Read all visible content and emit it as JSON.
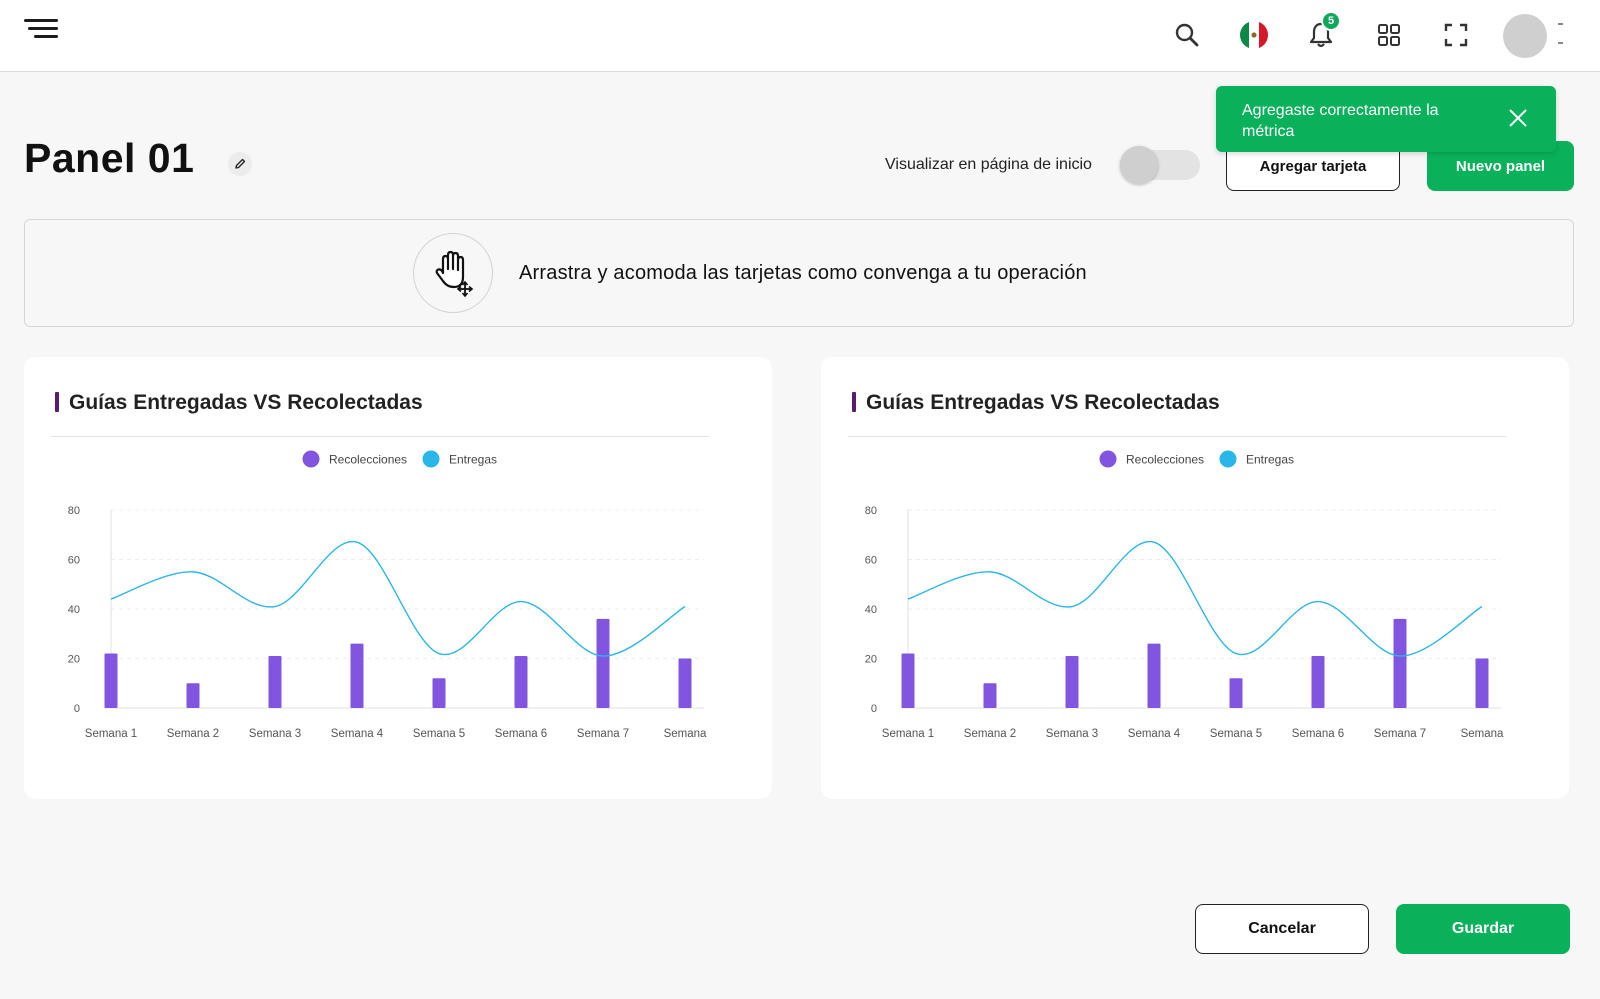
{
  "header": {
    "notification_count": "5",
    "icons": [
      "menu-icon",
      "search-icon",
      "mexico-flag-icon",
      "bell-icon",
      "grid-icon",
      "fullscreen-icon",
      "avatar"
    ]
  },
  "page": {
    "title": "Panel 01"
  },
  "controls": {
    "toggle_label": "Visualizar en página de inicio",
    "toggle_on": false,
    "add_card_label": "Agregar tarjeta",
    "new_panel_label": "Nuevo panel"
  },
  "toast": {
    "message": "Agregaste correctamente la métrica"
  },
  "hint": {
    "text": "Arrastra y acomoda las tarjetas como  convenga a tu operación"
  },
  "colors": {
    "accent_green": "#0ab15b",
    "bar_purple": "#8255e0",
    "line_blue": "#29b6e8",
    "title_marker": "#5a1a6e"
  },
  "cards": [
    {
      "title": "Guías Entregadas VS Recolectadas"
    },
    {
      "title": "Guías Entregadas VS Recolectadas"
    }
  ],
  "chart_data": [
    {
      "type": "bar",
      "title": "Guías Entregadas VS Recolectadas",
      "categories": [
        "Semana 1",
        "Semana 2",
        "Semana 3",
        "Semana 4",
        "Semana 5",
        "Semana 6",
        "Semana 7",
        "Semana"
      ],
      "series": [
        {
          "name": "Recolecciones",
          "type": "bar",
          "values": [
            22,
            10,
            21,
            26,
            12,
            21,
            36,
            20
          ]
        },
        {
          "name": "Entregas",
          "type": "line",
          "values": [
            44,
            55,
            41,
            67,
            22,
            43,
            21,
            41
          ]
        }
      ],
      "yticks": [
        "0",
        "20",
        "40",
        "60",
        "80"
      ],
      "ylim": [
        0,
        80
      ],
      "legend": "top-center",
      "grid": true
    },
    {
      "type": "bar",
      "title": "Guías Entregadas VS Recolectadas",
      "categories": [
        "Semana 1",
        "Semana 2",
        "Semana 3",
        "Semana 4",
        "Semana 5",
        "Semana 6",
        "Semana 7",
        "Semana"
      ],
      "series": [
        {
          "name": "Recolecciones",
          "type": "bar",
          "values": [
            22,
            10,
            21,
            26,
            12,
            21,
            36,
            20
          ]
        },
        {
          "name": "Entregas",
          "type": "line",
          "values": [
            44,
            55,
            41,
            67,
            22,
            43,
            21,
            41
          ]
        }
      ],
      "yticks": [
        "0",
        "20",
        "40",
        "60",
        "80"
      ],
      "ylim": [
        0,
        80
      ],
      "legend": "top-center",
      "grid": true
    }
  ],
  "footer": {
    "cancel_label": "Cancelar",
    "save_label": "Guardar"
  }
}
